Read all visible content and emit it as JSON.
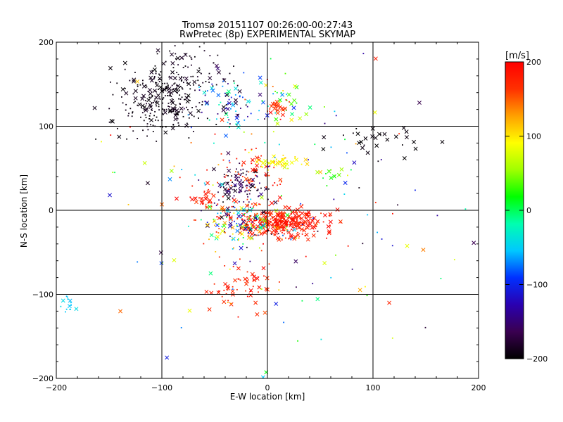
{
  "chart_data": {
    "type": "scatter",
    "title": "Tromsø 20151107 00:26:00-00:27:43",
    "subtitle": "RwPretec (8p) EXPERIMENTAL SKYMAP",
    "xlabel": "E-W location [km]",
    "ylabel": "N-S location [km]",
    "xlim": [
      -200,
      200
    ],
    "ylim": [
      -200,
      200
    ],
    "xticks": [
      -200,
      -100,
      0,
      100,
      200
    ],
    "yticks": [
      -200,
      -100,
      0,
      100,
      200
    ],
    "grid": true,
    "grid_lines": [
      -100,
      0,
      100
    ],
    "colorbar": {
      "label": "[m/s]",
      "min": -200,
      "max": 200,
      "ticks": [
        200,
        100,
        0,
        -100,
        -200
      ],
      "colors": [
        "#000000",
        "#3a0050",
        "#2a00b0",
        "#0030ff",
        "#00c8ff",
        "#00ffb0",
        "#00ff00",
        "#a0ff00",
        "#ffff00",
        "#ffa000",
        "#ff3000",
        "#ff0000"
      ]
    },
    "point_groups": [
      {
        "name": "NW black cluster",
        "cx": -100,
        "cy": 130,
        "sx": 22,
        "sy": 20,
        "n": 260,
        "vmin": -200,
        "vmax": -185,
        "cross": 0.22
      },
      {
        "name": "NW upper black",
        "cx": -80,
        "cy": 165,
        "sx": 25,
        "sy": 18,
        "n": 70,
        "vmin": -200,
        "vmax": -180,
        "cross": 0.25
      },
      {
        "name": "N mixed cluster",
        "cx": -40,
        "cy": 125,
        "sx": 15,
        "sy": 18,
        "n": 80,
        "vmin": -200,
        "vmax": 0,
        "cross": 0.35
      },
      {
        "name": "NE upper mixed",
        "cx": 10,
        "cy": 125,
        "sx": 12,
        "sy": 15,
        "n": 40,
        "vmin": -120,
        "vmax": 200,
        "cross": 0.4
      },
      {
        "name": "Orange patch",
        "cx": 8,
        "cy": 122,
        "sx": 5,
        "sy": 4,
        "n": 25,
        "vmin": 150,
        "vmax": 180,
        "cross": 0.6
      },
      {
        "name": "Far NE black",
        "cx": 110,
        "cy": 85,
        "sx": 30,
        "sy": 10,
        "n": 30,
        "vmin": -200,
        "vmax": -190,
        "cross": 0.7
      },
      {
        "name": "Mid black cluster",
        "cx": -25,
        "cy": 30,
        "sx": 12,
        "sy": 10,
        "n": 110,
        "vmin": -200,
        "vmax": -140,
        "cross": 0.3
      },
      {
        "name": "Mid red scatter",
        "cx": -15,
        "cy": 40,
        "sx": 20,
        "sy": 20,
        "n": 70,
        "vmin": 150,
        "vmax": 200,
        "cross": 0.2
      },
      {
        "name": "Yellow band",
        "cx": 8,
        "cy": 58,
        "sx": 10,
        "sy": 4,
        "n": 50,
        "vmin": 70,
        "vmax": 110,
        "cross": 0.5
      },
      {
        "name": "Central red",
        "cx": 15,
        "cy": -15,
        "sx": 20,
        "sy": 9,
        "n": 320,
        "vmin": 160,
        "vmax": 200,
        "cross": 0.45
      },
      {
        "name": "Central mixed",
        "cx": -20,
        "cy": -15,
        "sx": 18,
        "sy": 12,
        "n": 170,
        "vmin": -200,
        "vmax": 200,
        "cross": 0.35
      },
      {
        "name": "Left orange",
        "cx": -60,
        "cy": 15,
        "sx": 6,
        "sy": 5,
        "n": 30,
        "vmin": 150,
        "vmax": 200,
        "cross": 0.5
      },
      {
        "name": "South red",
        "cx": -20,
        "cy": -85,
        "sx": 15,
        "sy": 15,
        "n": 60,
        "vmin": 160,
        "vmax": 200,
        "cross": 0.5
      },
      {
        "name": "Sparse field",
        "cx": 0,
        "cy": 0,
        "sx": 90,
        "sy": 90,
        "n": 170,
        "vmin": -200,
        "vmax": 200,
        "cross": 0.3
      },
      {
        "name": "Far SW cyan",
        "cx": -187,
        "cy": -115,
        "sx": 3,
        "sy": 5,
        "n": 14,
        "vmin": -60,
        "vmax": -40,
        "cross": 0.2
      },
      {
        "name": "East green",
        "cx": 55,
        "cy": 40,
        "sx": 10,
        "sy": 5,
        "n": 12,
        "vmin": 0,
        "vmax": 60,
        "cross": 0.4
      }
    ]
  }
}
